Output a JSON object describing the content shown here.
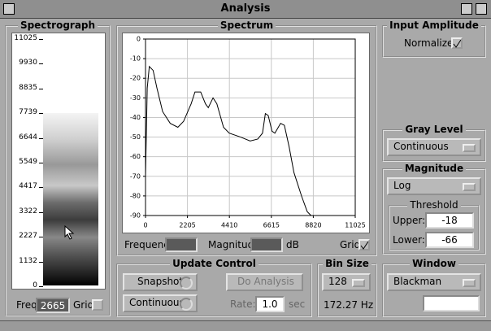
{
  "window": {
    "title": "Analysis"
  },
  "spectrograph": {
    "title": "Spectrograph",
    "ticks": [
      11025,
      9930,
      8835,
      7739,
      6644,
      5549,
      4417,
      3322,
      2227,
      1132,
      0
    ],
    "freq_label": "Freq:",
    "freq_value": 2665,
    "grid_label": "Grid"
  },
  "chart_data": {
    "type": "line",
    "title": "Spectrum",
    "x": [
      0,
      90,
      200,
      400,
      600,
      900,
      1300,
      1700,
      2000,
      2400,
      2600,
      2900,
      3150,
      3300,
      3550,
      3750,
      4100,
      4400,
      5000,
      5500,
      5900,
      6150,
      6300,
      6450,
      6650,
      6800,
      7100,
      7300,
      7550,
      7800,
      8200,
      8500,
      8700,
      11025
    ],
    "values": [
      -70,
      -25,
      -14,
      -16,
      -25,
      -37,
      -43,
      -45,
      -42,
      -33,
      -27,
      -27,
      -33,
      -35,
      -30,
      -33,
      -45,
      -48,
      -50,
      -52,
      -51,
      -48,
      -38,
      -39,
      -47,
      -48,
      -43,
      -44,
      -55,
      -68,
      -80,
      -88,
      -90,
      -90
    ],
    "color": "#000000",
    "xlim": [
      0,
      11025
    ],
    "ylim": [
      -90,
      0
    ],
    "xticks": [
      0,
      2205,
      4410,
      6615,
      8820,
      11025
    ],
    "yticks": [
      0,
      -10,
      -20,
      -30,
      -40,
      -50,
      -60,
      -70,
      -80,
      -90
    ],
    "grid": true
  },
  "spectrum_controls": {
    "frequency_label": "Frequency:",
    "magnitude_label": "Magnitude:",
    "magnitude_unit": "dB",
    "grid_label": "Grid"
  },
  "input_amplitude": {
    "title": "Input Amplitude",
    "normalize_label": "Normalize"
  },
  "gray_level": {
    "title": "Gray Level",
    "selection": "Continuous"
  },
  "magnitude": {
    "title": "Magnitude",
    "selection": "Log",
    "threshold": {
      "title": "Threshold",
      "upper_label": "Upper:",
      "upper_value": -18,
      "lower_label": "Lower:",
      "lower_value": -66
    }
  },
  "update_control": {
    "title": "Update Control",
    "snapshot": "Snapshot",
    "do_analysis": "Do Analysis",
    "continuous": "Continuous",
    "rate_label": "Rate:",
    "rate_value": "1.0",
    "rate_unit": "sec"
  },
  "bin_size": {
    "title": "Bin Size",
    "selection": 128,
    "resolution": "172.27 Hz"
  },
  "window_function": {
    "title": "Window",
    "selection": "Blackman"
  }
}
